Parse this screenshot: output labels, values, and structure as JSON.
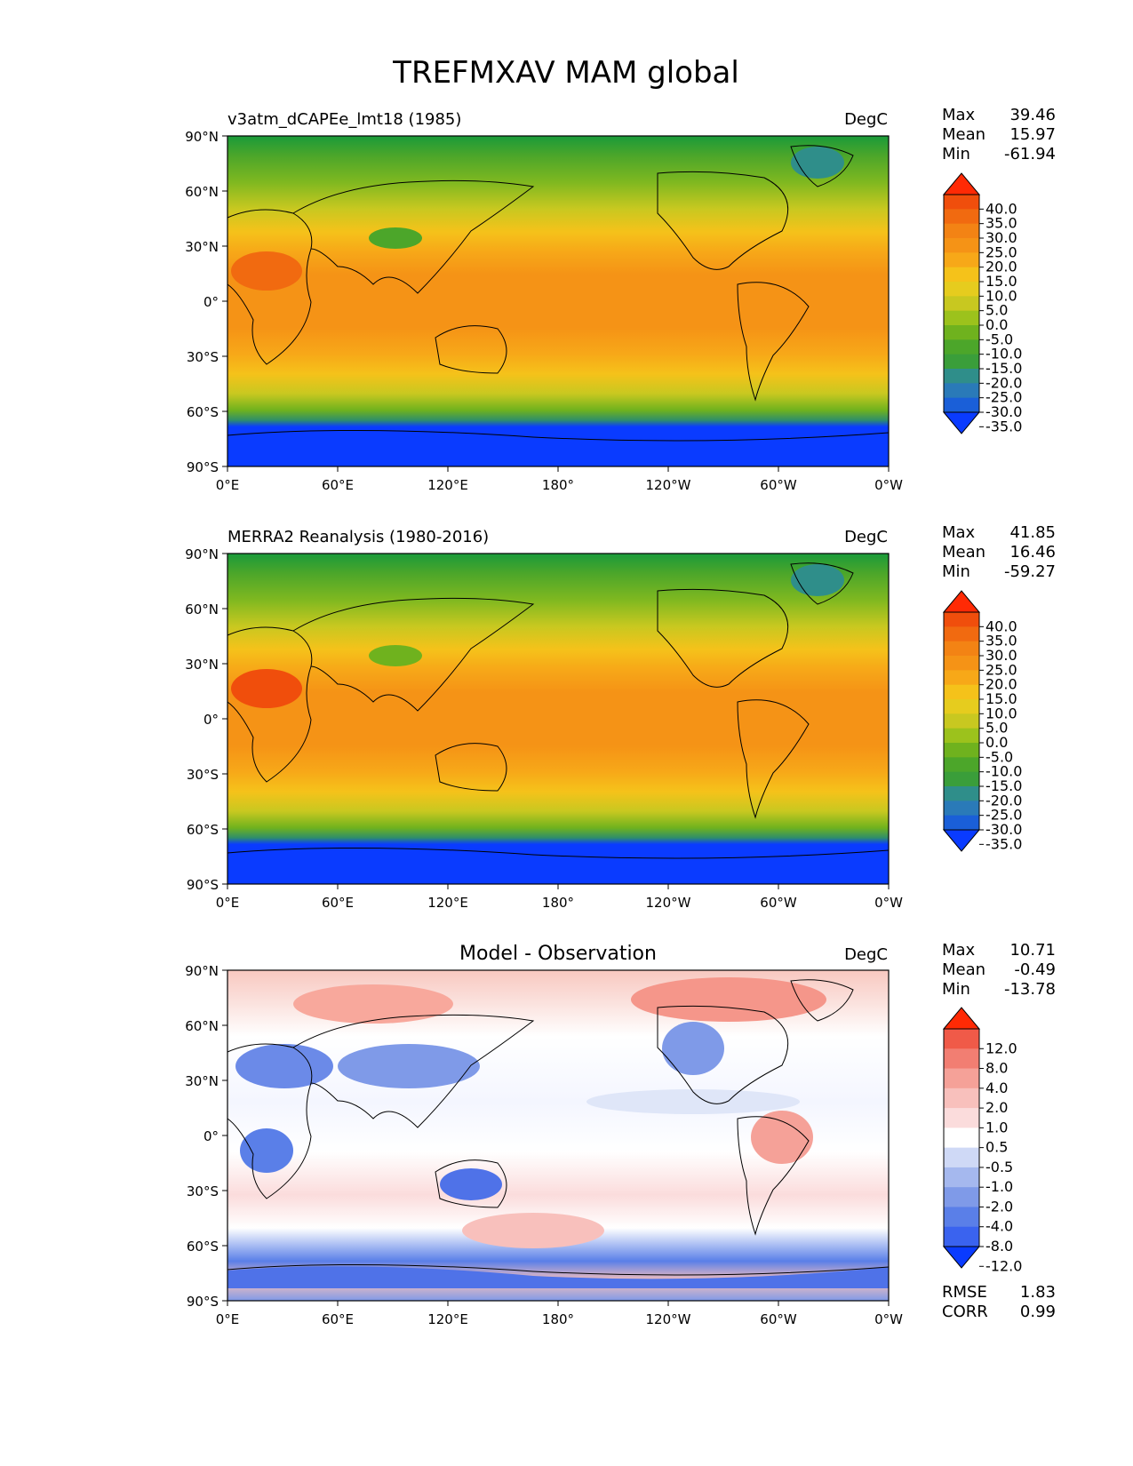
{
  "figure_title": "TREFMXAV MAM global",
  "axes": {
    "lat_labels": [
      "90°N",
      "60°N",
      "30°N",
      "0°",
      "30°S",
      "60°S",
      "90°S"
    ],
    "lon_labels": [
      "0°E",
      "60°E",
      "120°E",
      "180°",
      "120°W",
      "60°W",
      "0°W"
    ]
  },
  "panels": [
    {
      "id": "model",
      "title_left": "v3atm_dCAPEe_lmt18 (1985)",
      "title_center": "",
      "units": "DegC",
      "stats": [
        {
          "label": "Max",
          "value": "39.46"
        },
        {
          "label": "Mean",
          "value": "15.97"
        },
        {
          "label": "Min",
          "value": "-61.94"
        }
      ],
      "colorbar": {
        "ticks": [
          "40.0",
          "35.0",
          "30.0",
          "25.0",
          "20.0",
          "15.0",
          "10.0",
          "5.0",
          "0.0",
          "-5.0",
          "-10.0",
          "-15.0",
          "-20.0",
          "-25.0",
          "-30.0",
          "-35.0"
        ],
        "colors": [
          "#0a3bff",
          "#1a5fd8",
          "#2a7ab8",
          "#2f8e8a",
          "#3a9e3a",
          "#4ca62a",
          "#6fb21e",
          "#9cc21c",
          "#c8c820",
          "#e6cc1e",
          "#f5c21a",
          "#f7a818",
          "#f59316",
          "#f38314",
          "#f16a10",
          "#f04e0c",
          "#ff2a05"
        ],
        "extend": "both"
      }
    },
    {
      "id": "obs",
      "title_left": "MERRA2 Reanalysis (1980-2016)",
      "title_center": "",
      "units": "DegC",
      "stats": [
        {
          "label": "Max",
          "value": "41.85"
        },
        {
          "label": "Mean",
          "value": "16.46"
        },
        {
          "label": "Min",
          "value": "-59.27"
        }
      ],
      "colorbar": {
        "ticks": [
          "40.0",
          "35.0",
          "30.0",
          "25.0",
          "20.0",
          "15.0",
          "10.0",
          "5.0",
          "0.0",
          "-5.0",
          "-10.0",
          "-15.0",
          "-20.0",
          "-25.0",
          "-30.0",
          "-35.0"
        ],
        "colors": [
          "#0a3bff",
          "#1a5fd8",
          "#2a7ab8",
          "#2f8e8a",
          "#3a9e3a",
          "#4ca62a",
          "#6fb21e",
          "#9cc21c",
          "#c8c820",
          "#e6cc1e",
          "#f5c21a",
          "#f7a818",
          "#f59316",
          "#f38314",
          "#f16a10",
          "#f04e0c",
          "#ff2a05"
        ],
        "extend": "both"
      }
    },
    {
      "id": "diff",
      "title_left": "",
      "title_center": "Model - Observation",
      "units": "DegC",
      "stats": [
        {
          "label": "Max",
          "value": "10.71"
        },
        {
          "label": "Mean",
          "value": "-0.49"
        },
        {
          "label": "Min",
          "value": "-13.78"
        }
      ],
      "extra_stats": [
        {
          "label": "RMSE",
          "value": "1.83"
        },
        {
          "label": "CORR",
          "value": "0.99"
        }
      ],
      "colorbar": {
        "ticks": [
          "12.0",
          "8.0",
          "4.0",
          "2.0",
          "1.0",
          "0.5",
          "-0.5",
          "-1.0",
          "-2.0",
          "-4.0",
          "-8.0",
          "-12.0"
        ],
        "colors": [
          "#0a3bff",
          "#3a63ef",
          "#5a7fe8",
          "#7f9ae8",
          "#a5b8ee",
          "#cfd9f6",
          "#ffffff",
          "#fbdcdc",
          "#f8c0bc",
          "#f5a198",
          "#f27e72",
          "#f05a48",
          "#ff2a05"
        ],
        "extend": "both"
      }
    }
  ]
}
